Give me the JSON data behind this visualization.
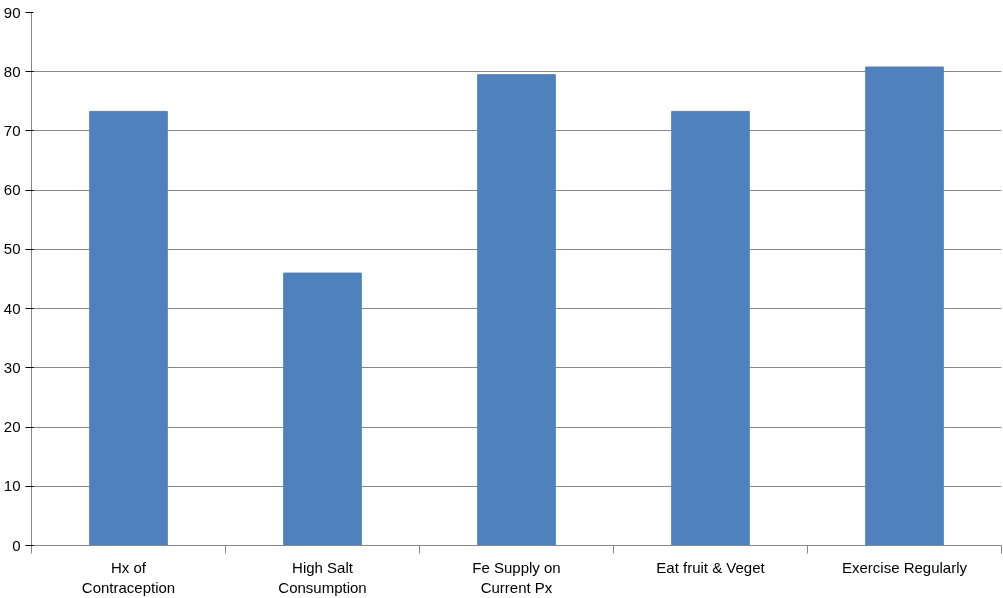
{
  "chart_data": {
    "type": "bar",
    "categories": [
      "Hx of Contraception",
      "High Salt Consumption",
      "Fe Supply on Current Px",
      "Eat fruit & Veget",
      "Exercise Regularly"
    ],
    "values": [
      73.3,
      46.0,
      79.5,
      73.3,
      80.8
    ],
    "color": "#4f81bd",
    "ylim": [
      0,
      90
    ],
    "yticks": [
      0,
      10,
      20,
      30,
      40,
      50,
      60,
      70,
      80,
      90
    ],
    "grid": "y"
  }
}
